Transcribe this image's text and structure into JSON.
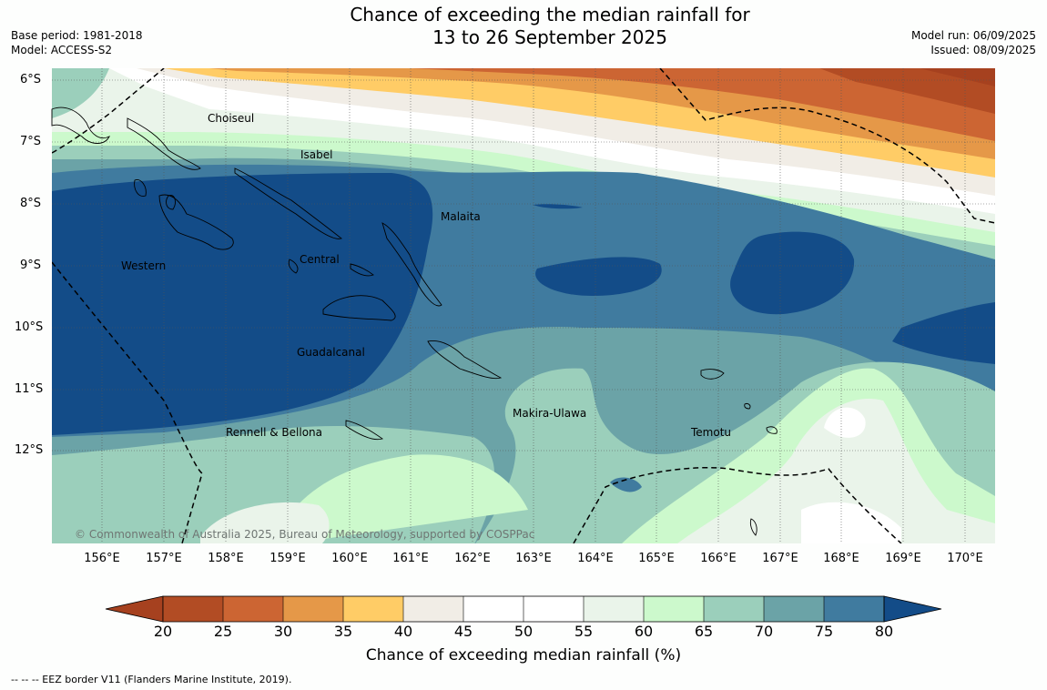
{
  "title_line1": "Chance of exceeding the median rainfall for",
  "title_line2": "13 to 26 September 2025",
  "base_period": "Base period: 1981-2018",
  "model": "Model: ACCESS-S2",
  "model_run": "Model run: 06/09/2025",
  "issued": "Issued: 08/09/2025",
  "lat_labels": [
    "6°S",
    "7°S",
    "8°S",
    "9°S",
    "10°S",
    "11°S",
    "12°S"
  ],
  "lon_labels": [
    "156°E",
    "157°E",
    "158°E",
    "159°E",
    "160°E",
    "161°E",
    "162°E",
    "163°E",
    "164°E",
    "165°E",
    "166°E",
    "167°E",
    "168°E",
    "169°E",
    "170°E"
  ],
  "places": {
    "choiseul": "Choiseul",
    "isabel": "Isabel",
    "malaita": "Malaita",
    "western": "Western",
    "central": "Central",
    "guadalcanal": "Guadalcanal",
    "makira": "Makira-Ulawa",
    "rennell": "Rennell & Bellona",
    "temotu": "Temotu"
  },
  "copyright": "© Commonwealth of Australia 2025, Bureau of Meteorology, supported by COSPPac",
  "colorbar": {
    "ticks": [
      "20",
      "25",
      "30",
      "35",
      "40",
      "45",
      "50",
      "55",
      "60",
      "65",
      "70",
      "75",
      "80"
    ],
    "colors": [
      "#a6411f",
      "#b24c24",
      "#cc6533",
      "#e59848",
      "#ffcc66",
      "#f1ede6",
      "#ffffff",
      "#ffffff",
      "#eaf4ea",
      "#ccf9cc",
      "#9bcfbb",
      "#6ba3a7",
      "#407b9f",
      "#134c88"
    ],
    "label": "Chance of exceeding median rainfall (%)"
  },
  "footnote": "--  --  -- EEZ border V11 (Flanders Marine Institute, 2019)."
}
